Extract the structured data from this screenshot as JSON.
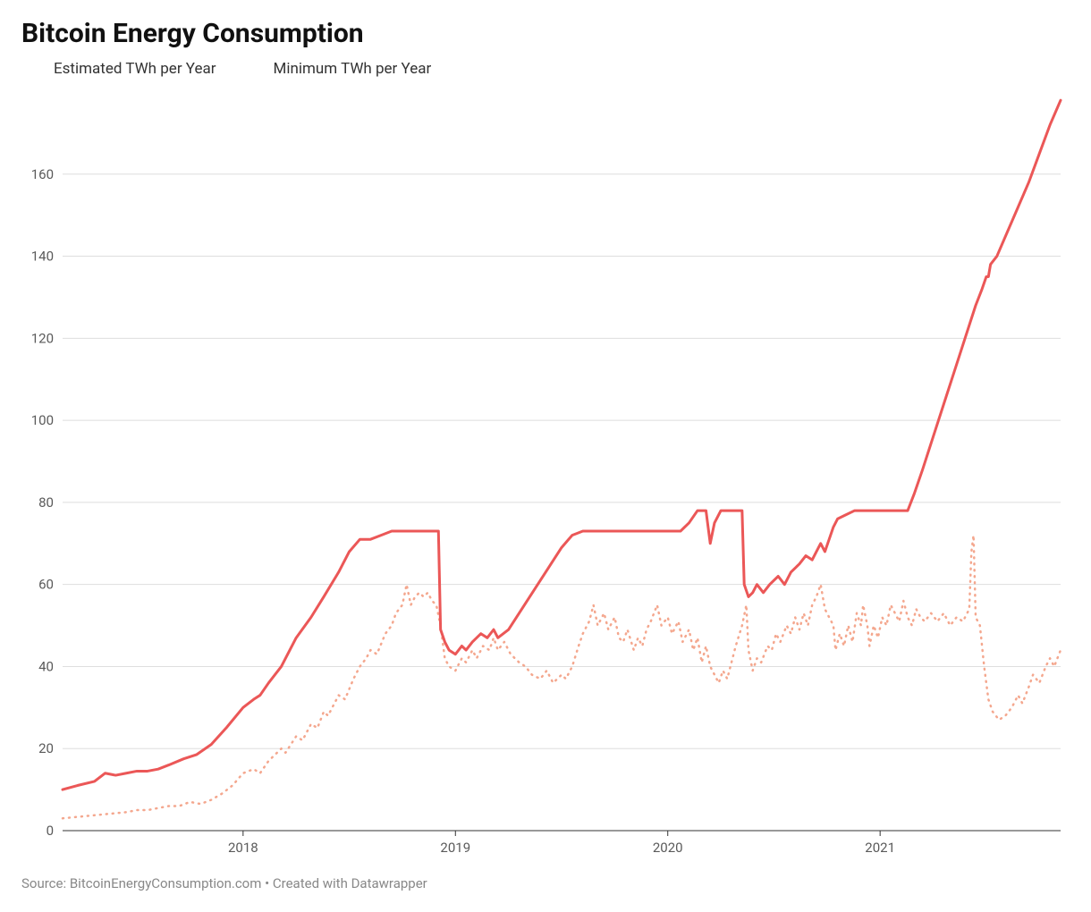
{
  "title": "Bitcoin Energy Consumption",
  "legend": {
    "estimated": "Estimated TWh per Year",
    "minimum": "Minimum TWh per Year"
  },
  "footer": "Source: BitcoinEnergyConsumption.com • Created with Datawrapper",
  "chart": {
    "type": "line",
    "background_color": "#ffffff",
    "grid_color": "#dedede",
    "baseline_color": "#333333",
    "axis_text_color": "#5a5a5a",
    "title_fontsize": 30,
    "legend_fontsize": 17,
    "axis_fontsize": 15,
    "footer_fontsize": 15,
    "x_start": 2017.15,
    "x_end": 2021.85,
    "xticks": [
      2018,
      2019,
      2020,
      2021
    ],
    "xtick_labels": [
      "2018",
      "2019",
      "2020",
      "2021"
    ],
    "ylim": [
      0,
      180
    ],
    "yticks": [
      0,
      20,
      40,
      60,
      80,
      100,
      120,
      140,
      160
    ],
    "series": {
      "estimated": {
        "color": "#eb5757",
        "width": 3,
        "dash": null,
        "points": [
          [
            2017.15,
            10
          ],
          [
            2017.22,
            11
          ],
          [
            2017.3,
            12
          ],
          [
            2017.35,
            14
          ],
          [
            2017.4,
            13.5
          ],
          [
            2017.45,
            14
          ],
          [
            2017.5,
            14.5
          ],
          [
            2017.55,
            14.5
          ],
          [
            2017.6,
            15
          ],
          [
            2017.65,
            16
          ],
          [
            2017.72,
            17.5
          ],
          [
            2017.78,
            18.5
          ],
          [
            2017.85,
            21
          ],
          [
            2017.92,
            25
          ],
          [
            2018.0,
            30
          ],
          [
            2018.05,
            32
          ],
          [
            2018.08,
            33
          ],
          [
            2018.12,
            36
          ],
          [
            2018.18,
            40
          ],
          [
            2018.25,
            47
          ],
          [
            2018.32,
            52
          ],
          [
            2018.38,
            57
          ],
          [
            2018.45,
            63
          ],
          [
            2018.5,
            68
          ],
          [
            2018.55,
            71
          ],
          [
            2018.6,
            71
          ],
          [
            2018.65,
            72
          ],
          [
            2018.7,
            73
          ],
          [
            2018.78,
            73
          ],
          [
            2018.85,
            73
          ],
          [
            2018.9,
            73
          ],
          [
            2018.92,
            73
          ],
          [
            2018.93,
            49
          ],
          [
            2018.95,
            46
          ],
          [
            2018.97,
            44
          ],
          [
            2019.0,
            43
          ],
          [
            2019.03,
            45
          ],
          [
            2019.05,
            44
          ],
          [
            2019.08,
            46
          ],
          [
            2019.12,
            48
          ],
          [
            2019.15,
            47
          ],
          [
            2019.18,
            49
          ],
          [
            2019.2,
            47
          ],
          [
            2019.25,
            49
          ],
          [
            2019.3,
            53
          ],
          [
            2019.35,
            57
          ],
          [
            2019.4,
            61
          ],
          [
            2019.45,
            65
          ],
          [
            2019.5,
            69
          ],
          [
            2019.55,
            72
          ],
          [
            2019.6,
            73
          ],
          [
            2019.7,
            73
          ],
          [
            2019.8,
            73
          ],
          [
            2019.9,
            73
          ],
          [
            2020.0,
            73
          ],
          [
            2020.06,
            73
          ],
          [
            2020.1,
            75
          ],
          [
            2020.14,
            78
          ],
          [
            2020.18,
            78
          ],
          [
            2020.2,
            70
          ],
          [
            2020.22,
            75
          ],
          [
            2020.25,
            78
          ],
          [
            2020.28,
            78
          ],
          [
            2020.32,
            78
          ],
          [
            2020.35,
            78
          ],
          [
            2020.36,
            60
          ],
          [
            2020.38,
            57
          ],
          [
            2020.4,
            58
          ],
          [
            2020.42,
            60
          ],
          [
            2020.45,
            58
          ],
          [
            2020.48,
            60
          ],
          [
            2020.52,
            62
          ],
          [
            2020.55,
            60
          ],
          [
            2020.58,
            63
          ],
          [
            2020.62,
            65
          ],
          [
            2020.65,
            67
          ],
          [
            2020.68,
            66
          ],
          [
            2020.7,
            68
          ],
          [
            2020.72,
            70
          ],
          [
            2020.74,
            68
          ],
          [
            2020.76,
            71
          ],
          [
            2020.78,
            74
          ],
          [
            2020.8,
            76
          ],
          [
            2020.84,
            77
          ],
          [
            2020.88,
            78
          ],
          [
            2020.92,
            78
          ],
          [
            2020.96,
            78
          ],
          [
            2021.0,
            78
          ],
          [
            2021.05,
            78
          ],
          [
            2021.1,
            78
          ],
          [
            2021.13,
            78
          ],
          [
            2021.16,
            82
          ],
          [
            2021.2,
            88
          ],
          [
            2021.25,
            96
          ],
          [
            2021.3,
            104
          ],
          [
            2021.35,
            112
          ],
          [
            2021.4,
            120
          ],
          [
            2021.45,
            128
          ],
          [
            2021.48,
            132
          ],
          [
            2021.5,
            135
          ],
          [
            2021.51,
            135
          ],
          [
            2021.52,
            138
          ],
          [
            2021.55,
            140
          ],
          [
            2021.6,
            146
          ],
          [
            2021.65,
            152
          ],
          [
            2021.7,
            158
          ],
          [
            2021.75,
            165
          ],
          [
            2021.8,
            172
          ],
          [
            2021.85,
            178
          ]
        ]
      },
      "minimum": {
        "color": "#f4a78e",
        "width": 2.5,
        "dash": "1,6",
        "points": [
          [
            2017.15,
            3
          ],
          [
            2017.25,
            3.5
          ],
          [
            2017.35,
            4
          ],
          [
            2017.45,
            4.5
          ],
          [
            2017.5,
            5
          ],
          [
            2017.55,
            5
          ],
          [
            2017.6,
            5.5
          ],
          [
            2017.65,
            6
          ],
          [
            2017.7,
            6
          ],
          [
            2017.75,
            7
          ],
          [
            2017.8,
            6.5
          ],
          [
            2017.85,
            7.5
          ],
          [
            2017.9,
            9
          ],
          [
            2017.95,
            11
          ],
          [
            2018.0,
            14
          ],
          [
            2018.05,
            15
          ],
          [
            2018.08,
            14
          ],
          [
            2018.12,
            17
          ],
          [
            2018.18,
            20
          ],
          [
            2018.2,
            19
          ],
          [
            2018.25,
            23
          ],
          [
            2018.28,
            22
          ],
          [
            2018.32,
            26
          ],
          [
            2018.35,
            25
          ],
          [
            2018.38,
            29
          ],
          [
            2018.4,
            28
          ],
          [
            2018.45,
            33
          ],
          [
            2018.48,
            32
          ],
          [
            2018.52,
            37
          ],
          [
            2018.55,
            40
          ],
          [
            2018.58,
            42
          ],
          [
            2018.6,
            44
          ],
          [
            2018.63,
            43
          ],
          [
            2018.67,
            48
          ],
          [
            2018.7,
            50
          ],
          [
            2018.72,
            53
          ],
          [
            2018.75,
            55
          ],
          [
            2018.77,
            60
          ],
          [
            2018.79,
            55
          ],
          [
            2018.81,
            57
          ],
          [
            2018.83,
            58
          ],
          [
            2018.85,
            57
          ],
          [
            2018.87,
            58
          ],
          [
            2018.89,
            56
          ],
          [
            2018.91,
            55
          ],
          [
            2018.93,
            50
          ],
          [
            2018.95,
            42
          ],
          [
            2018.97,
            40
          ],
          [
            2019.0,
            39
          ],
          [
            2019.03,
            42
          ],
          [
            2019.05,
            41
          ],
          [
            2019.08,
            44
          ],
          [
            2019.1,
            42
          ],
          [
            2019.13,
            45
          ],
          [
            2019.16,
            44
          ],
          [
            2019.18,
            47
          ],
          [
            2019.2,
            44
          ],
          [
            2019.23,
            46
          ],
          [
            2019.26,
            43
          ],
          [
            2019.3,
            41
          ],
          [
            2019.33,
            40
          ],
          [
            2019.36,
            38
          ],
          [
            2019.4,
            37
          ],
          [
            2019.43,
            39
          ],
          [
            2019.46,
            36
          ],
          [
            2019.5,
            38
          ],
          [
            2019.52,
            37
          ],
          [
            2019.55,
            40
          ],
          [
            2019.58,
            45
          ],
          [
            2019.6,
            48
          ],
          [
            2019.63,
            51
          ],
          [
            2019.65,
            55
          ],
          [
            2019.67,
            50
          ],
          [
            2019.7,
            53
          ],
          [
            2019.72,
            49
          ],
          [
            2019.75,
            52
          ],
          [
            2019.77,
            47
          ],
          [
            2019.79,
            46
          ],
          [
            2019.81,
            49
          ],
          [
            2019.84,
            44
          ],
          [
            2019.86,
            47
          ],
          [
            2019.88,
            45
          ],
          [
            2019.9,
            49
          ],
          [
            2019.92,
            51
          ],
          [
            2019.95,
            55
          ],
          [
            2019.97,
            50
          ],
          [
            2020.0,
            52
          ],
          [
            2020.02,
            48
          ],
          [
            2020.05,
            51
          ],
          [
            2020.07,
            46
          ],
          [
            2020.1,
            49
          ],
          [
            2020.12,
            44
          ],
          [
            2020.14,
            47
          ],
          [
            2020.16,
            41
          ],
          [
            2020.18,
            45
          ],
          [
            2020.2,
            40
          ],
          [
            2020.22,
            38
          ],
          [
            2020.24,
            36
          ],
          [
            2020.26,
            39
          ],
          [
            2020.28,
            37
          ],
          [
            2020.3,
            41
          ],
          [
            2020.32,
            45
          ],
          [
            2020.35,
            50
          ],
          [
            2020.37,
            55
          ],
          [
            2020.38,
            44
          ],
          [
            2020.4,
            39
          ],
          [
            2020.42,
            42
          ],
          [
            2020.44,
            41
          ],
          [
            2020.47,
            45
          ],
          [
            2020.49,
            44
          ],
          [
            2020.51,
            48
          ],
          [
            2020.53,
            46
          ],
          [
            2020.56,
            50
          ],
          [
            2020.58,
            48
          ],
          [
            2020.6,
            52
          ],
          [
            2020.62,
            49
          ],
          [
            2020.64,
            53
          ],
          [
            2020.66,
            50
          ],
          [
            2020.68,
            55
          ],
          [
            2020.7,
            57
          ],
          [
            2020.72,
            60
          ],
          [
            2020.74,
            54
          ],
          [
            2020.76,
            52
          ],
          [
            2020.78,
            50
          ],
          [
            2020.79,
            44
          ],
          [
            2020.81,
            48
          ],
          [
            2020.83,
            45
          ],
          [
            2020.85,
            50
          ],
          [
            2020.87,
            46
          ],
          [
            2020.89,
            53
          ],
          [
            2020.91,
            50
          ],
          [
            2020.92,
            55
          ],
          [
            2020.94,
            50
          ],
          [
            2020.95,
            45
          ],
          [
            2020.97,
            50
          ],
          [
            2020.99,
            47
          ],
          [
            2021.01,
            52
          ],
          [
            2021.03,
            50
          ],
          [
            2021.05,
            55
          ],
          [
            2021.07,
            53
          ],
          [
            2021.09,
            51
          ],
          [
            2021.11,
            56
          ],
          [
            2021.13,
            52
          ],
          [
            2021.15,
            50
          ],
          [
            2021.17,
            54
          ],
          [
            2021.19,
            52
          ],
          [
            2021.21,
            51
          ],
          [
            2021.24,
            53
          ],
          [
            2021.27,
            51
          ],
          [
            2021.3,
            53
          ],
          [
            2021.33,
            50
          ],
          [
            2021.36,
            52
          ],
          [
            2021.39,
            51
          ],
          [
            2021.42,
            54
          ],
          [
            2021.43,
            68
          ],
          [
            2021.44,
            72
          ],
          [
            2021.45,
            52
          ],
          [
            2021.47,
            50
          ],
          [
            2021.49,
            40
          ],
          [
            2021.51,
            32
          ],
          [
            2021.53,
            29
          ],
          [
            2021.56,
            27
          ],
          [
            2021.59,
            28
          ],
          [
            2021.62,
            30
          ],
          [
            2021.65,
            33
          ],
          [
            2021.67,
            31
          ],
          [
            2021.7,
            35
          ],
          [
            2021.72,
            38
          ],
          [
            2021.75,
            36
          ],
          [
            2021.78,
            40
          ],
          [
            2021.8,
            42
          ],
          [
            2021.82,
            40
          ],
          [
            2021.85,
            44
          ]
        ]
      }
    }
  }
}
